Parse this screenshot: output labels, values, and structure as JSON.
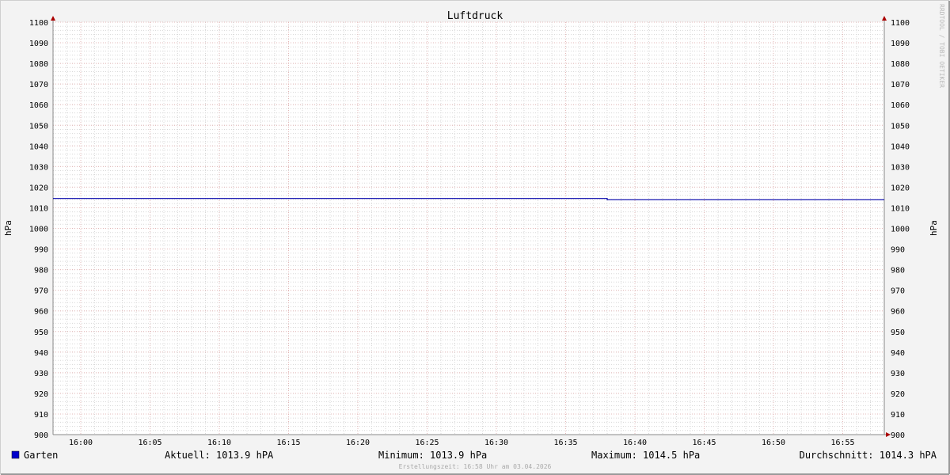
{
  "chart_data": {
    "type": "line",
    "title": "Luftdruck",
    "ylabel_left": "hPa",
    "ylabel_right": "hPa",
    "ylim": [
      900,
      1100
    ],
    "yticks": [
      900,
      910,
      920,
      930,
      940,
      950,
      960,
      970,
      980,
      990,
      1000,
      1010,
      1020,
      1030,
      1040,
      1050,
      1060,
      1070,
      1080,
      1090,
      1100
    ],
    "xlim": [
      "15:58",
      "16:58"
    ],
    "xticks": [
      "16:00",
      "16:05",
      "16:10",
      "16:15",
      "16:20",
      "16:25",
      "16:30",
      "16:35",
      "16:40",
      "16:45",
      "16:50",
      "16:55"
    ],
    "grid": true,
    "series": [
      {
        "name": "Garten",
        "color": "#0000aa",
        "points": [
          [
            "15:58",
            1014.5
          ],
          [
            "16:38",
            1014.5
          ],
          [
            "16:38",
            1013.9
          ],
          [
            "16:58",
            1013.9
          ]
        ]
      }
    ],
    "legend": {
      "series_label": "Garten",
      "swatch_color": "#0000cc",
      "current": "Aktuell: 1013.9 hPA",
      "minimum": "Minimum: 1013.9 hPa",
      "maximum": "Maximum: 1014.5 hPa",
      "average": "Durchschnitt: 1014.3 hPA"
    },
    "footer": "Erstellungszeit: 16:58 Uhr am 03.04.2026",
    "watermark": "RRDTOOL / TOBI OETIKER"
  }
}
